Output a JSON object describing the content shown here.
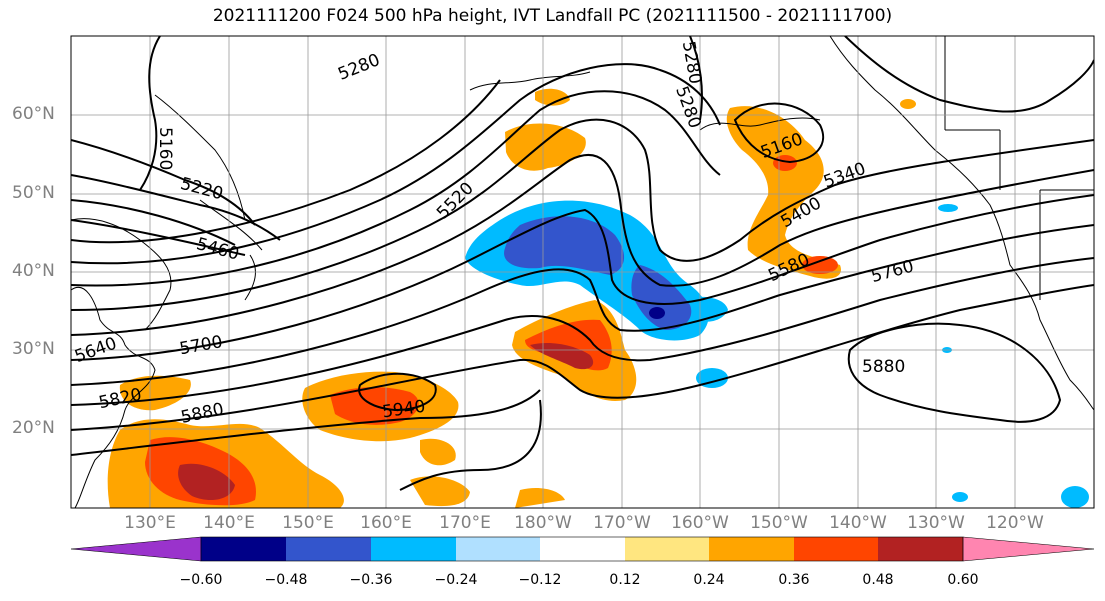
{
  "title": "2021111200 F024 500 hPa height, IVT Landfall PC (2021111500 - 2021111700)",
  "lat_labels": [
    "60°N",
    "50°N",
    "40°N",
    "30°N",
    "20°N"
  ],
  "lon_labels": [
    "130°E",
    "140°E",
    "150°E",
    "160°E",
    "170°E",
    "180°W",
    "170°W",
    "160°W",
    "150°W",
    "140°W",
    "130°W",
    "120°W"
  ],
  "contour_labels": [
    "5280",
    "5280",
    "5280",
    "5160",
    "5160",
    "5220",
    "5520",
    "5460",
    "5340",
    "5400",
    "5580",
    "5760",
    "5640",
    "5700",
    "5820",
    "5880",
    "5940",
    "5880"
  ],
  "colorbar": {
    "ticks": [
      "−0.60",
      "−0.48",
      "−0.36",
      "−0.24",
      "−0.12",
      "0.12",
      "0.24",
      "0.36",
      "0.48",
      "0.60"
    ],
    "colors": [
      "#9a33cc",
      "#000088",
      "#3355cc",
      "#00bbff",
      "#b0e0ff",
      "#ffffff",
      "#ffe680",
      "#ffa500",
      "#ff4500",
      "#b22222",
      "#ff85b0"
    ]
  }
}
